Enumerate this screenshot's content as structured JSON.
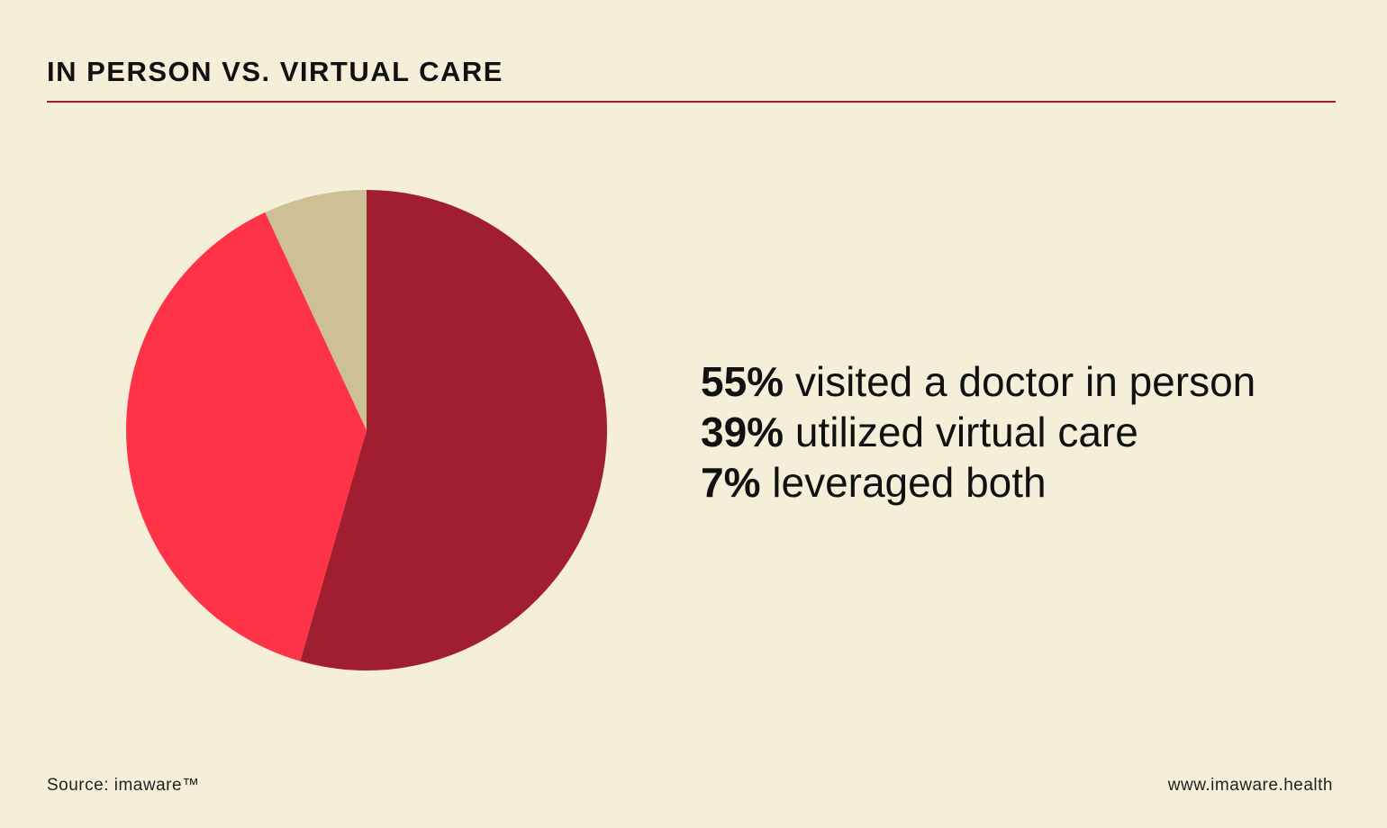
{
  "header": {
    "title": "IN PERSON VS. VIRTUAL CARE"
  },
  "chart_data": {
    "type": "pie",
    "title": "IN PERSON VS. VIRTUAL CARE",
    "slices": [
      {
        "label": "visited a doctor in person",
        "value": 55,
        "value_label": "55%",
        "color": "#a01e30"
      },
      {
        "label": "utilized virtual care",
        "value": 39,
        "value_label": "39%",
        "color": "#ff3347"
      },
      {
        "label": "leveraged both",
        "value": 7,
        "value_label": "7%",
        "color": "#cdc096"
      }
    ]
  },
  "legend": [
    {
      "pct": "55%",
      "label": "visited a doctor in person"
    },
    {
      "pct": "39%",
      "label": "utilized virtual care"
    },
    {
      "pct": "7%",
      "label": "leveraged both"
    }
  ],
  "footer": {
    "source": "Source: imaware™",
    "website": "www.imaware.health"
  }
}
